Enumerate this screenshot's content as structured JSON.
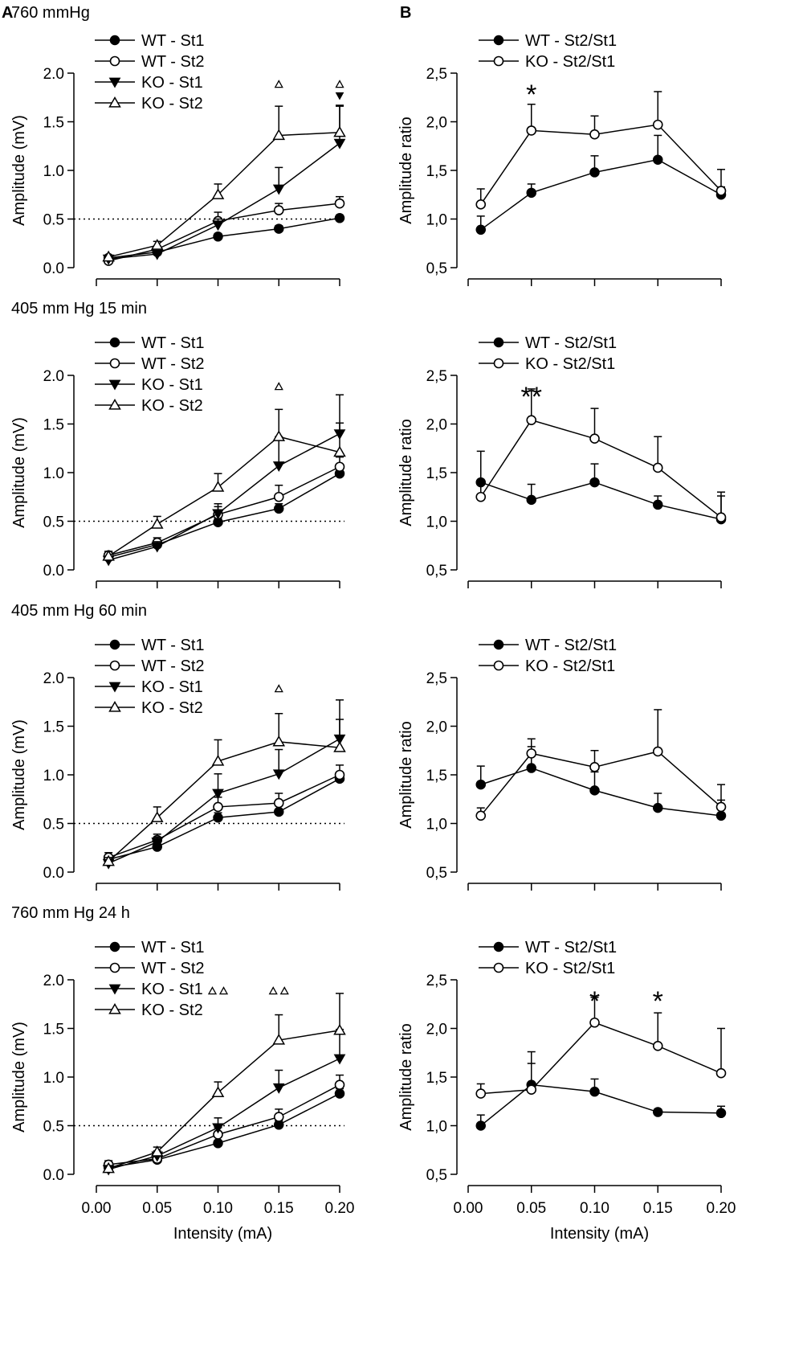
{
  "panel_letters": [
    "A",
    "B"
  ],
  "chart_data": [
    {
      "panel": "A",
      "row": 1,
      "type": "line",
      "title": "760 mmHg",
      "xlabel": "",
      "ylabel": "Amplitude (mV)",
      "x": [
        0.01,
        0.05,
        0.1,
        0.15,
        0.2
      ],
      "xlim": [
        0.0,
        0.2
      ],
      "xticks": [
        "0.00",
        "0.05",
        "0.10",
        "0.15",
        "0.20"
      ],
      "ylim": [
        0,
        2.0
      ],
      "yticks": [
        "0.0",
        "0.5",
        "1.0",
        "1.5",
        "2.0"
      ],
      "reference_line": 0.5,
      "series": [
        {
          "name": "WT - St1",
          "marker": "filled-circle",
          "values": [
            0.1,
            0.16,
            0.32,
            0.4,
            0.51
          ],
          "err": [
            0.02,
            0.02,
            0.03,
            0.03,
            0.03
          ]
        },
        {
          "name": "WT - St2",
          "marker": "open-circle",
          "values": [
            0.07,
            0.19,
            0.48,
            0.59,
            0.66
          ],
          "err": [
            0.02,
            0.03,
            0.09,
            0.07,
            0.07
          ]
        },
        {
          "name": "KO - St1",
          "marker": "filled-triangle-down",
          "values": [
            0.09,
            0.14,
            0.44,
            0.81,
            1.28
          ],
          "err": [
            0.02,
            0.02,
            0.06,
            0.22,
            0.38
          ]
        },
        {
          "name": "KO - St2",
          "marker": "open-triangle-up",
          "values": [
            0.11,
            0.23,
            0.75,
            1.36,
            1.39
          ],
          "err": [
            0.02,
            0.04,
            0.11,
            0.3,
            0.28
          ]
        }
      ],
      "significance": [
        {
          "x": 0.15,
          "symbols": [
            "open-triangle-up"
          ]
        },
        {
          "x": 0.2,
          "symbols": [
            "open-triangle-up",
            "filled-triangle-down"
          ]
        }
      ]
    },
    {
      "panel": "B",
      "row": 1,
      "type": "line",
      "title": "",
      "xlabel": "",
      "ylabel": "Amplitude ratio",
      "x": [
        0.01,
        0.05,
        0.1,
        0.15,
        0.2
      ],
      "xlim": [
        0.0,
        0.2
      ],
      "xticks": [
        "0.00",
        "0.05",
        "0.10",
        "0.15",
        "0.20"
      ],
      "ylim": [
        0.5,
        2.5
      ],
      "yticks": [
        "0,5",
        "1,0",
        "1,5",
        "2,0",
        "2,5"
      ],
      "series": [
        {
          "name": "WT - St2/St1",
          "marker": "filled-circle",
          "values": [
            0.89,
            1.27,
            1.48,
            1.61,
            1.25
          ],
          "err": [
            0.14,
            0.09,
            0.17,
            0.25,
            0.08
          ]
        },
        {
          "name": "KO - St2/St1",
          "marker": "open-circle",
          "values": [
            1.15,
            1.91,
            1.87,
            1.97,
            1.29
          ],
          "err": [
            0.16,
            0.27,
            0.19,
            0.34,
            0.22
          ]
        }
      ],
      "stars": [
        {
          "x": 0.05,
          "label": "*"
        }
      ]
    },
    {
      "panel": "A",
      "row": 2,
      "type": "line",
      "title": "405 mm Hg  15 min",
      "xlabel": "",
      "ylabel": "Amplitude (mV)",
      "x": [
        0.01,
        0.05,
        0.1,
        0.15,
        0.2
      ],
      "xlim": [
        0.0,
        0.2
      ],
      "xticks": [
        "0.00",
        "0.05",
        "0.10",
        "0.15",
        "0.20"
      ],
      "ylim": [
        0,
        2.0
      ],
      "yticks": [
        "0.0",
        "0.5",
        "1.0",
        "1.5",
        "2.0"
      ],
      "reference_line": 0.5,
      "series": [
        {
          "name": "WT - St1",
          "marker": "filled-circle",
          "values": [
            0.13,
            0.26,
            0.49,
            0.63,
            0.99
          ],
          "err": [
            0.03,
            0.03,
            0.04,
            0.05,
            0.06
          ]
        },
        {
          "name": "WT - St2",
          "marker": "open-circle",
          "values": [
            0.15,
            0.28,
            0.57,
            0.75,
            1.06
          ],
          "err": [
            0.04,
            0.05,
            0.08,
            0.12,
            0.1
          ]
        },
        {
          "name": "KO - St1",
          "marker": "filled-triangle-down",
          "values": [
            0.1,
            0.24,
            0.58,
            1.07,
            1.4
          ],
          "err": [
            0.03,
            0.05,
            0.1,
            0.3,
            0.4
          ]
        },
        {
          "name": "KO - St2",
          "marker": "open-triangle-up",
          "values": [
            0.14,
            0.47,
            0.85,
            1.37,
            1.21
          ],
          "err": [
            0.05,
            0.08,
            0.14,
            0.28,
            0.3
          ]
        }
      ],
      "significance": [
        {
          "x": 0.15,
          "symbols": [
            "open-triangle-up"
          ]
        }
      ]
    },
    {
      "panel": "B",
      "row": 2,
      "type": "line",
      "title": "",
      "xlabel": "",
      "ylabel": "Amplitude ratio",
      "x": [
        0.01,
        0.05,
        0.1,
        0.15,
        0.2
      ],
      "xlim": [
        0.0,
        0.2
      ],
      "xticks": [
        "0.00",
        "0.05",
        "0.10",
        "0.15",
        "0.20"
      ],
      "ylim": [
        0.5,
        2.5
      ],
      "yticks": [
        "0,5",
        "1,0",
        "1,5",
        "2,0",
        "2,5"
      ],
      "series": [
        {
          "name": "WT - St2/St1",
          "marker": "filled-circle",
          "values": [
            1.4,
            1.22,
            1.4,
            1.17,
            1.02
          ],
          "err": [
            0.32,
            0.16,
            0.19,
            0.09,
            0.24
          ]
        },
        {
          "name": "KO - St2/St1",
          "marker": "open-circle",
          "values": [
            1.25,
            2.04,
            1.85,
            1.55,
            1.04
          ],
          "err": [
            0.16,
            0.32,
            0.31,
            0.32,
            0.26
          ]
        }
      ],
      "stars": [
        {
          "x": 0.05,
          "label": "**"
        }
      ]
    },
    {
      "panel": "A",
      "row": 3,
      "type": "line",
      "title": "405 mm Hg  60 min",
      "xlabel": "",
      "ylabel": "Amplitude (mV)",
      "x": [
        0.01,
        0.05,
        0.1,
        0.15,
        0.2
      ],
      "xlim": [
        0.0,
        0.2
      ],
      "xticks": [
        "0.00",
        "0.05",
        "0.10",
        "0.15",
        "0.20"
      ],
      "ylim": [
        0,
        2.0
      ],
      "yticks": [
        "0.0",
        "0.5",
        "1.0",
        "1.5",
        "2.0"
      ],
      "reference_line": 0.5,
      "series": [
        {
          "name": "WT - St1",
          "marker": "filled-circle",
          "values": [
            0.13,
            0.26,
            0.56,
            0.62,
            0.96
          ],
          "err": [
            0.03,
            0.03,
            0.05,
            0.06,
            0.06
          ]
        },
        {
          "name": "WT - St2",
          "marker": "open-circle",
          "values": [
            0.15,
            0.33,
            0.67,
            0.71,
            1.0
          ],
          "err": [
            0.05,
            0.06,
            0.1,
            0.1,
            0.1
          ]
        },
        {
          "name": "KO - St1",
          "marker": "filled-triangle-down",
          "values": [
            0.09,
            0.31,
            0.81,
            1.01,
            1.37
          ],
          "err": [
            0.03,
            0.05,
            0.2,
            0.25,
            0.4
          ]
        },
        {
          "name": "KO - St2",
          "marker": "open-triangle-up",
          "values": [
            0.11,
            0.56,
            1.14,
            1.34,
            1.28
          ],
          "err": [
            0.04,
            0.11,
            0.22,
            0.29,
            0.29
          ]
        }
      ],
      "significance": [
        {
          "x": 0.15,
          "symbols": [
            "open-triangle-up"
          ]
        }
      ]
    },
    {
      "panel": "B",
      "row": 3,
      "type": "line",
      "title": "",
      "xlabel": "",
      "ylabel": "Amplitude ratio",
      "x": [
        0.01,
        0.05,
        0.1,
        0.15,
        0.2
      ],
      "xlim": [
        0.0,
        0.2
      ],
      "xticks": [
        "0.00",
        "0.05",
        "0.10",
        "0.15",
        "0.20"
      ],
      "ylim": [
        0.5,
        2.5
      ],
      "yticks": [
        "0,5",
        "1,0",
        "1,5",
        "2,0",
        "2,5"
      ],
      "series": [
        {
          "name": "WT - St2/St1",
          "marker": "filled-circle",
          "values": [
            1.4,
            1.57,
            1.34,
            1.16,
            1.08
          ],
          "err": [
            0.19,
            0.22,
            0.19,
            0.15,
            0.16
          ]
        },
        {
          "name": "KO - St2/St1",
          "marker": "open-circle",
          "values": [
            1.08,
            1.72,
            1.58,
            1.74,
            1.17
          ],
          "err": [
            0.08,
            0.15,
            0.17,
            0.43,
            0.23
          ]
        }
      ],
      "stars": []
    },
    {
      "panel": "A",
      "row": 4,
      "type": "line",
      "title": "760 mm Hg  24 h",
      "xlabel": "Intensity (mA)",
      "ylabel": "Amplitude (mV)",
      "x": [
        0.01,
        0.05,
        0.1,
        0.15,
        0.2
      ],
      "xlim": [
        0.0,
        0.2
      ],
      "xticks": [
        "0.00",
        "0.05",
        "0.10",
        "0.15",
        "0.20"
      ],
      "ylim": [
        0,
        2.0
      ],
      "yticks": [
        "0.0",
        "0.5",
        "1.0",
        "1.5",
        "2.0"
      ],
      "reference_line": 0.5,
      "series": [
        {
          "name": "WT - St1",
          "marker": "filled-circle",
          "values": [
            0.07,
            0.15,
            0.32,
            0.51,
            0.83
          ],
          "err": [
            0.02,
            0.02,
            0.03,
            0.04,
            0.05
          ]
        },
        {
          "name": "WT - St2",
          "marker": "open-circle",
          "values": [
            0.1,
            0.16,
            0.41,
            0.59,
            0.92
          ],
          "err": [
            0.04,
            0.04,
            0.07,
            0.08,
            0.1
          ]
        },
        {
          "name": "KO - St1",
          "marker": "filled-triangle-down",
          "values": [
            0.05,
            0.19,
            0.48,
            0.89,
            1.19
          ],
          "err": [
            0.02,
            0.05,
            0.1,
            0.18,
            0.3
          ]
        },
        {
          "name": "KO - St2",
          "marker": "open-triangle-up",
          "values": [
            0.06,
            0.23,
            0.84,
            1.38,
            1.48
          ],
          "err": [
            0.03,
            0.05,
            0.11,
            0.26,
            0.38
          ]
        }
      ],
      "significance": [
        {
          "x": 0.1,
          "symbols": [
            "open-triangle-up",
            "open-triangle-up"
          ]
        },
        {
          "x": 0.15,
          "symbols": [
            "open-triangle-up",
            "open-triangle-up"
          ]
        }
      ]
    },
    {
      "panel": "B",
      "row": 4,
      "type": "line",
      "title": "",
      "xlabel": "Intensity (mA)",
      "ylabel": "Amplitude ratio",
      "x": [
        0.01,
        0.05,
        0.1,
        0.15,
        0.2
      ],
      "xlim": [
        0.0,
        0.2
      ],
      "xticks": [
        "0.00",
        "0.05",
        "0.10",
        "0.15",
        "0.20"
      ],
      "ylim": [
        0.5,
        2.5
      ],
      "yticks": [
        "0,5",
        "1,0",
        "1,5",
        "2,0",
        "2,5"
      ],
      "series": [
        {
          "name": "WT - St2/St1",
          "marker": "filled-circle",
          "values": [
            1.0,
            1.42,
            1.35,
            1.14,
            1.13
          ],
          "err": [
            0.11,
            0.34,
            0.13,
            0.03,
            0.07
          ]
        },
        {
          "name": "KO - St2/St1",
          "marker": "open-circle",
          "values": [
            1.33,
            1.37,
            2.06,
            1.82,
            1.54
          ],
          "err": [
            0.1,
            0.27,
            0.26,
            0.34,
            0.46
          ]
        }
      ],
      "stars": [
        {
          "x": 0.1,
          "label": "*"
        },
        {
          "x": 0.15,
          "label": "*"
        }
      ]
    }
  ]
}
